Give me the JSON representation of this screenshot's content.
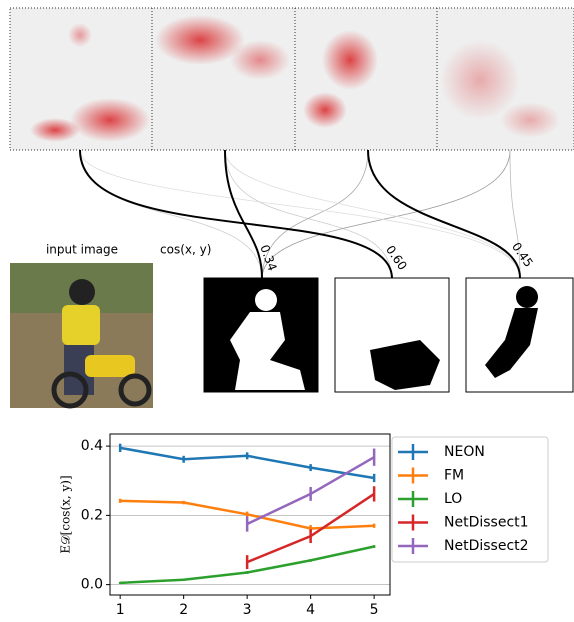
{
  "figure": {
    "input_label": "input image",
    "similarity_label": "cos(x, y)",
    "similarities": [
      "0.34",
      "0.60",
      "0.45"
    ]
  },
  "chart_data": {
    "type": "line",
    "y_label": "E𝒟[cos(x, y)]",
    "x": [
      1,
      2,
      3,
      4,
      5
    ],
    "xlim": [
      0.84,
      5.25
    ],
    "xticks": [
      1,
      2,
      3,
      4,
      5
    ],
    "ylim": [
      -0.03,
      0.435
    ],
    "yticks": [
      {
        "value": 0,
        "label": "0.0"
      },
      {
        "value": 0.2,
        "label": "0.2"
      },
      {
        "value": 0.4,
        "label": "0.4"
      }
    ],
    "grid": true,
    "legend": "outside right",
    "series": [
      {
        "name": "NEON",
        "color": "#1f77b4",
        "values": [
          0.395,
          0.362,
          0.372,
          0.338,
          0.308
        ],
        "errors": [
          0.012,
          0.01,
          0.01,
          0.01,
          0.012
        ]
      },
      {
        "name": "FM",
        "color": "#ff7f0e",
        "values": [
          0.242,
          0.237,
          0.203,
          0.162,
          0.17
        ],
        "errors": [
          0.006,
          0.005,
          0.008,
          0.01,
          0.006
        ]
      },
      {
        "name": "LO",
        "color": "#2ca02c",
        "values": [
          0.005,
          0.014,
          0.035,
          0.07,
          0.11
        ],
        "errors": [
          0.003,
          0.003,
          0.004,
          0.004,
          0.004
        ]
      },
      {
        "name": "NetDissect1",
        "color": "#d62728",
        "values": [
          null,
          null,
          0.065,
          0.14,
          0.262
        ],
        "errors": [
          null,
          null,
          0.02,
          0.02,
          0.022
        ]
      },
      {
        "name": "NetDissect2",
        "color": "#9467bd",
        "values": [
          null,
          null,
          0.175,
          0.262,
          0.368
        ],
        "errors": [
          null,
          null,
          0.022,
          0.02,
          0.025
        ]
      }
    ]
  }
}
